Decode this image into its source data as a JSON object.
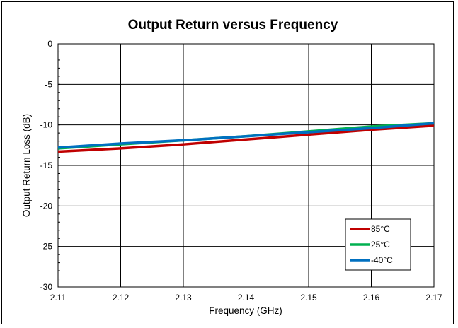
{
  "chart_data": {
    "type": "line",
    "title": "Output Return versus Frequency",
    "xlabel": "Frequency (GHz)",
    "ylabel": "Output Return Loss (dB)",
    "xlim": [
      2.11,
      2.17
    ],
    "ylim": [
      -30,
      0
    ],
    "xticks": [
      "2.11",
      "2.12",
      "2.13",
      "2.14",
      "2.15",
      "2.16",
      "2.17"
    ],
    "yticks": [
      "0",
      "-5",
      "-10",
      "-15",
      "-20",
      "-25",
      "-30"
    ],
    "grid": true,
    "legend_position": "bottom-right",
    "x": [
      2.11,
      2.12,
      2.13,
      2.14,
      2.15,
      2.16,
      2.17
    ],
    "series": [
      {
        "name": "85°C",
        "color": "#c00000",
        "values": [
          -13.3,
          -12.9,
          -12.4,
          -11.8,
          -11.2,
          -10.6,
          -10.1
        ]
      },
      {
        "name": "25°C",
        "color": "#00b050",
        "values": [
          -12.9,
          -12.4,
          -11.9,
          -11.4,
          -10.8,
          -10.2,
          -9.8
        ]
      },
      {
        "name": "-40°C",
        "color": "#0070c0",
        "values": [
          -12.8,
          -12.3,
          -11.9,
          -11.4,
          -10.9,
          -10.4,
          -9.8
        ]
      }
    ]
  }
}
